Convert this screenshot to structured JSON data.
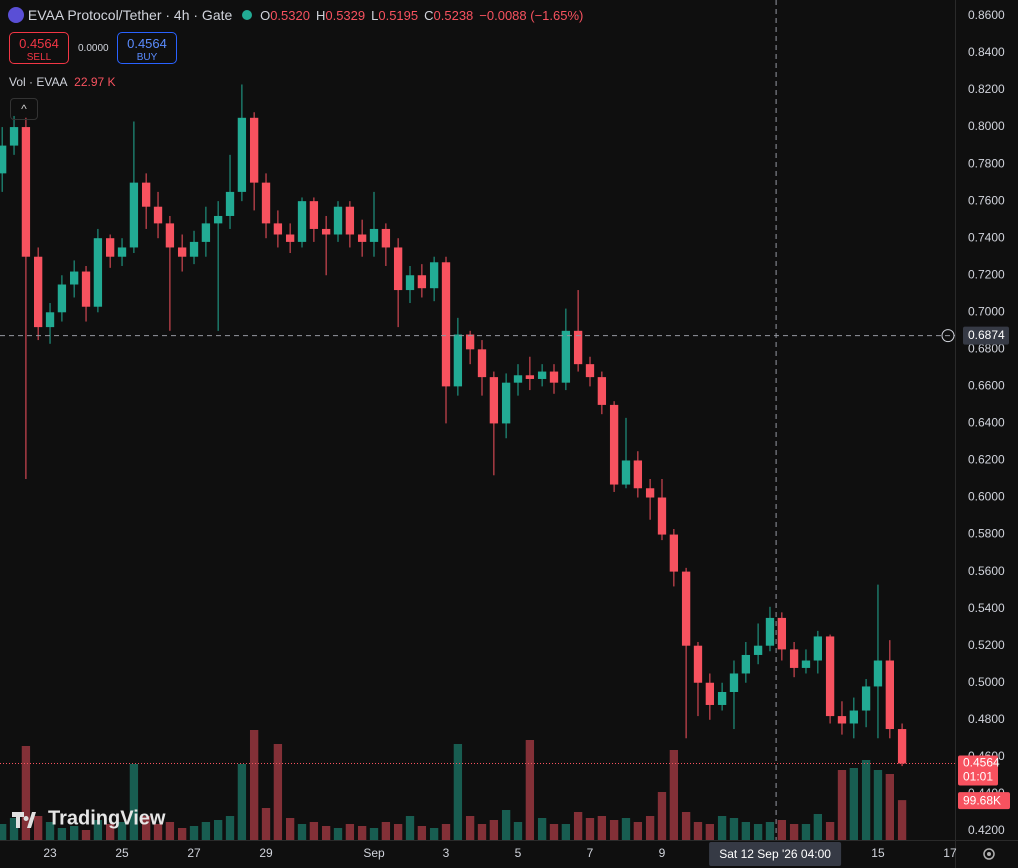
{
  "chart_data": {
    "type": "candlestick",
    "title": "EVAA Protocol/Tether · 4h · Gate",
    "up_color": "#22ab94",
    "down_color": "#f7525f",
    "grid": false,
    "xlim": [
      -1.39,
      25.14
    ],
    "ylim": [
      0.4151,
      0.8686
    ],
    "xticks": [
      {
        "value": 0,
        "label": "23"
      },
      {
        "value": 2,
        "label": "25"
      },
      {
        "value": 4,
        "label": "27"
      },
      {
        "value": 6,
        "label": "29"
      },
      {
        "value": 9,
        "label": "Sep"
      },
      {
        "value": 11,
        "label": "3"
      },
      {
        "value": 13,
        "label": "5"
      },
      {
        "value": 15,
        "label": "7"
      },
      {
        "value": 17,
        "label": "9"
      },
      {
        "value": 23,
        "label": "15"
      },
      {
        "value": 25,
        "label": "17"
      }
    ],
    "yticks": [
      {
        "value": 0.86,
        "label": "0.8600"
      },
      {
        "value": 0.84,
        "label": "0.8400"
      },
      {
        "value": 0.82,
        "label": "0.8200"
      },
      {
        "value": 0.8,
        "label": "0.8000"
      },
      {
        "value": 0.78,
        "label": "0.7800"
      },
      {
        "value": 0.76,
        "label": "0.7600"
      },
      {
        "value": 0.74,
        "label": "0.7400"
      },
      {
        "value": 0.72,
        "label": "0.7200"
      },
      {
        "value": 0.7,
        "label": "0.7000"
      },
      {
        "value": 0.68,
        "label": "0.6800"
      },
      {
        "value": 0.66,
        "label": "0.6600"
      },
      {
        "value": 0.64,
        "label": "0.6400"
      },
      {
        "value": 0.62,
        "label": "0.6200"
      },
      {
        "value": 0.6,
        "label": "0.6000"
      },
      {
        "value": 0.58,
        "label": "0.5800"
      },
      {
        "value": 0.56,
        "label": "0.5600"
      },
      {
        "value": 0.54,
        "label": "0.5400"
      },
      {
        "value": 0.52,
        "label": "0.5200"
      },
      {
        "value": 0.5,
        "label": "0.5000"
      },
      {
        "value": 0.48,
        "label": "0.4800"
      },
      {
        "value": 0.46,
        "label": "0.4600"
      },
      {
        "value": 0.44,
        "label": "0.4400"
      },
      {
        "value": 0.42,
        "label": "0.4200"
      }
    ],
    "x": [
      -1.33,
      -1,
      -0.67,
      -0.33,
      0,
      0.33,
      0.67,
      1,
      1.33,
      1.67,
      2,
      2.33,
      2.67,
      3,
      3.33,
      3.67,
      4,
      4.33,
      4.67,
      5,
      5.33,
      5.67,
      6,
      6.33,
      6.67,
      7,
      7.33,
      7.67,
      8,
      8.33,
      8.67,
      9,
      9.33,
      9.67,
      10,
      10.33,
      10.67,
      11,
      11.33,
      11.67,
      12,
      12.33,
      12.67,
      13,
      13.33,
      13.67,
      14,
      14.33,
      14.67,
      15,
      15.33,
      15.67,
      16,
      16.33,
      16.67,
      17,
      17.33,
      17.67,
      18,
      18.33,
      18.67,
      19,
      19.33,
      19.67,
      20,
      20.33,
      20.67,
      21,
      21.33,
      21.67,
      22,
      22.33,
      22.67,
      23,
      23.33,
      23.67
    ],
    "open": [
      0.775,
      0.79,
      0.8,
      0.73,
      0.692,
      0.7,
      0.715,
      0.722,
      0.703,
      0.74,
      0.73,
      0.735,
      0.77,
      0.757,
      0.748,
      0.735,
      0.73,
      0.738,
      0.748,
      0.752,
      0.765,
      0.805,
      0.77,
      0.748,
      0.742,
      0.738,
      0.76,
      0.745,
      0.742,
      0.757,
      0.742,
      0.738,
      0.745,
      0.735,
      0.712,
      0.72,
      0.713,
      0.727,
      0.66,
      0.688,
      0.68,
      0.665,
      0.64,
      0.662,
      0.666,
      0.664,
      0.668,
      0.662,
      0.69,
      0.672,
      0.665,
      0.65,
      0.607,
      0.62,
      0.605,
      0.6,
      0.58,
      0.56,
      0.52,
      0.5,
      0.488,
      0.495,
      0.505,
      0.515,
      0.52,
      0.535,
      0.518,
      0.508,
      0.512,
      0.525,
      0.482,
      0.478,
      0.485,
      0.498,
      0.512,
      0.475
    ],
    "high": [
      0.8,
      0.806,
      0.805,
      0.735,
      0.705,
      0.72,
      0.728,
      0.725,
      0.745,
      0.742,
      0.74,
      0.803,
      0.775,
      0.765,
      0.752,
      0.742,
      0.744,
      0.757,
      0.76,
      0.785,
      0.823,
      0.808,
      0.775,
      0.755,
      0.748,
      0.762,
      0.762,
      0.752,
      0.76,
      0.76,
      0.75,
      0.765,
      0.748,
      0.74,
      0.725,
      0.726,
      0.73,
      0.73,
      0.697,
      0.69,
      0.685,
      0.668,
      0.667,
      0.672,
      0.676,
      0.672,
      0.672,
      0.702,
      0.712,
      0.676,
      0.668,
      0.652,
      0.643,
      0.625,
      0.61,
      0.61,
      0.583,
      0.562,
      0.522,
      0.505,
      0.5,
      0.512,
      0.522,
      0.532,
      0.541,
      0.538,
      0.522,
      0.518,
      0.528,
      0.526,
      0.49,
      0.492,
      0.502,
      0.553,
      0.523,
      0.478
    ],
    "low": [
      0.765,
      0.785,
      0.61,
      0.685,
      0.683,
      0.695,
      0.708,
      0.695,
      0.7,
      0.724,
      0.725,
      0.732,
      0.745,
      0.74,
      0.69,
      0.722,
      0.726,
      0.73,
      0.69,
      0.745,
      0.76,
      0.755,
      0.74,
      0.735,
      0.732,
      0.735,
      0.738,
      0.72,
      0.738,
      0.735,
      0.73,
      0.73,
      0.725,
      0.692,
      0.705,
      0.708,
      0.706,
      0.64,
      0.655,
      0.672,
      0.655,
      0.612,
      0.632,
      0.655,
      0.658,
      0.66,
      0.656,
      0.658,
      0.668,
      0.66,
      0.645,
      0.603,
      0.605,
      0.6,
      0.588,
      0.577,
      0.552,
      0.47,
      0.482,
      0.48,
      0.485,
      0.475,
      0.5,
      0.51,
      0.517,
      0.512,
      0.503,
      0.505,
      0.505,
      0.478,
      0.472,
      0.47,
      0.476,
      0.47,
      0.47,
      0.455
    ],
    "close": [
      0.79,
      0.8,
      0.73,
      0.692,
      0.7,
      0.715,
      0.722,
      0.703,
      0.74,
      0.73,
      0.735,
      0.77,
      0.757,
      0.748,
      0.735,
      0.73,
      0.738,
      0.748,
      0.752,
      0.765,
      0.805,
      0.77,
      0.748,
      0.742,
      0.738,
      0.76,
      0.745,
      0.742,
      0.757,
      0.742,
      0.738,
      0.745,
      0.735,
      0.712,
      0.72,
      0.713,
      0.727,
      0.66,
      0.688,
      0.68,
      0.665,
      0.64,
      0.662,
      0.666,
      0.664,
      0.668,
      0.662,
      0.69,
      0.672,
      0.665,
      0.65,
      0.607,
      0.62,
      0.605,
      0.6,
      0.58,
      0.56,
      0.52,
      0.5,
      0.488,
      0.495,
      0.505,
      0.515,
      0.52,
      0.535,
      0.518,
      0.508,
      0.512,
      0.525,
      0.482,
      0.478,
      0.485,
      0.498,
      0.512,
      0.475,
      0.4564
    ],
    "volume": {
      "name": "Vol · EVAA",
      "vlim": [
        0,
        2100
      ],
      "values": [
        40,
        55,
        235,
        60,
        45,
        30,
        35,
        25,
        50,
        40,
        45,
        190,
        60,
        40,
        45,
        30,
        35,
        45,
        50,
        60,
        190,
        275,
        80,
        240,
        55,
        40,
        45,
        35,
        30,
        40,
        35,
        30,
        45,
        40,
        60,
        35,
        30,
        40,
        240,
        60,
        40,
        50,
        75,
        45,
        250,
        55,
        40,
        40,
        70,
        55,
        60,
        50,
        55,
        45,
        60,
        120,
        225,
        70,
        45,
        40,
        60,
        55,
        45,
        40,
        45,
        50,
        40,
        40,
        65,
        45,
        175,
        180,
        200,
        175,
        165,
        99.68
      ],
      "last_label": "99.68K"
    },
    "crosshair": {
      "price": 0.6874,
      "x": 20.17,
      "x_label": "Sat 12 Sep '26 04:00"
    },
    "last_price": {
      "value": 0.4564,
      "label": "0.4564",
      "countdown": "01:01"
    }
  },
  "ohlc_readout": [
    {
      "key": "O",
      "value": "0.5320"
    },
    {
      "key": "H",
      "value": "0.5329"
    },
    {
      "key": "L",
      "value": "0.5195"
    },
    {
      "key": "C",
      "value": "0.5238"
    }
  ],
  "change_readout": "−0.0088 (−1.65%)",
  "volume_readout": "22.97 K",
  "trade": {
    "sell": {
      "price": "0.4564",
      "label": "SELL"
    },
    "spread": "0.0000",
    "buy": {
      "price": "0.4564",
      "label": "BUY"
    }
  },
  "watermark": "TradingView"
}
